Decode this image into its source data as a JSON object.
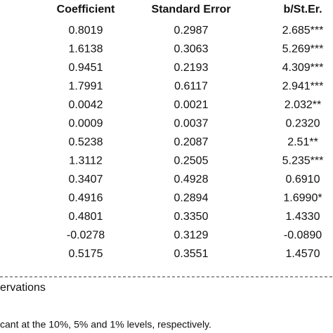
{
  "table": {
    "header": [
      "Coefficient",
      "Standard Error",
      "b/St.Er."
    ],
    "rows": [
      [
        "0.8019",
        "0.2987",
        "2.685***"
      ],
      [
        "1.6138",
        "0.3063",
        "5.269***"
      ],
      [
        "0.9451",
        "0.2193",
        "4.309***"
      ],
      [
        "1.7991",
        "0.6117",
        "2.941***"
      ],
      [
        "0.0042",
        "0.0021",
        "2.032**"
      ],
      [
        "0.0009",
        "0.0037",
        "0.2320"
      ],
      [
        "0.5238",
        "0.2087",
        "2.51**"
      ],
      [
        "1.3112",
        "0.2505",
        "5.235***"
      ],
      [
        "0.3407",
        "0.4928",
        "0.6910"
      ],
      [
        "0.4916",
        "0.2894",
        "1.6990*"
      ],
      [
        "0.4801",
        "0.3350",
        "1.4330"
      ],
      [
        "-0.0278",
        "0.3129",
        "-0.0890"
      ],
      [
        "0.5175",
        "0.3551",
        "1.4570"
      ]
    ],
    "observations_label": "ervations",
    "footnote": "cant at the 10%, 5% and 1% levels, respectively."
  }
}
